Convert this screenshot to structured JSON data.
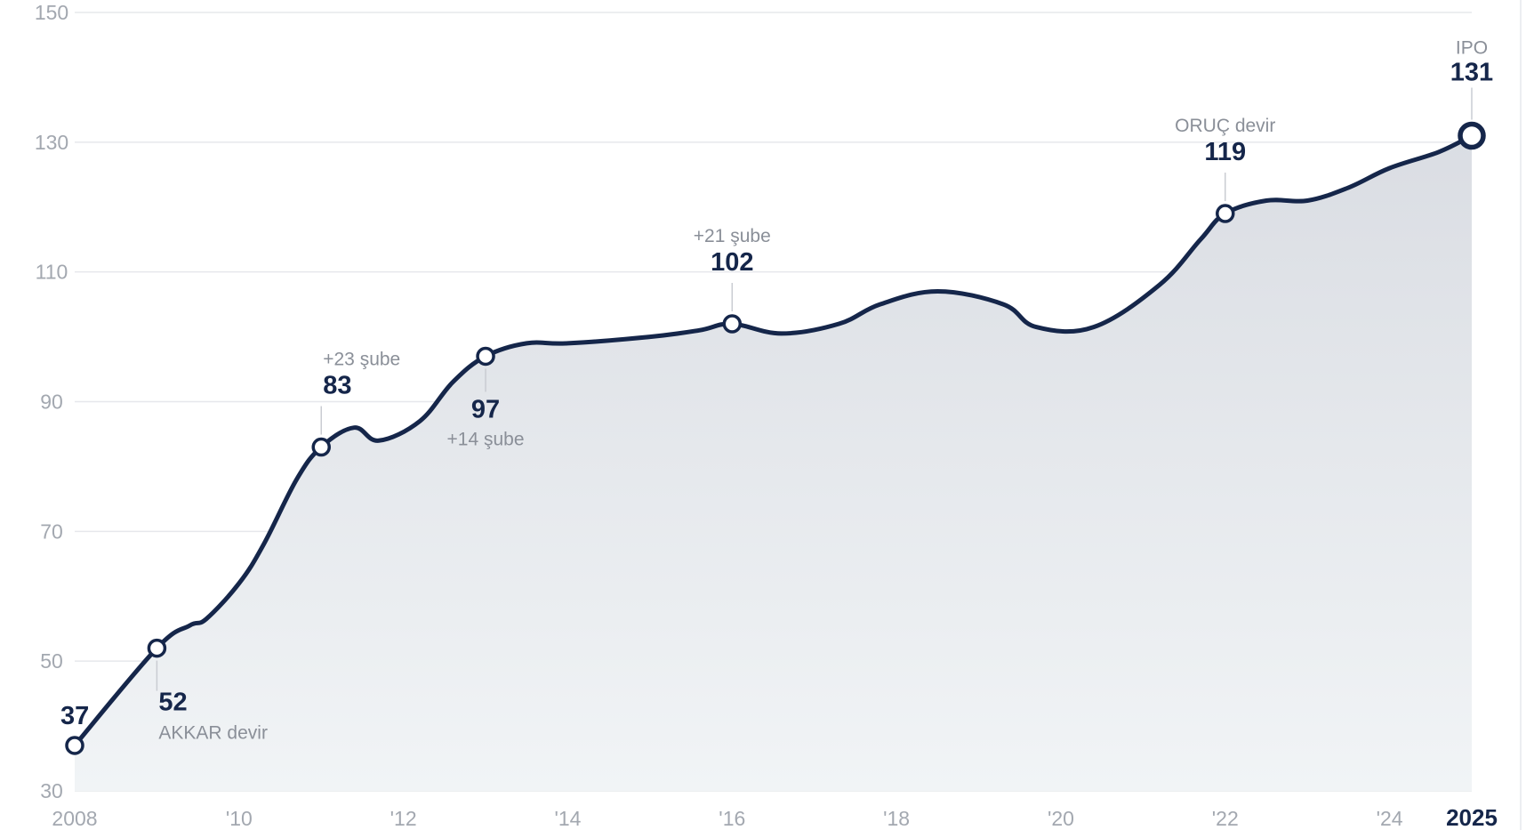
{
  "chart_data": {
    "type": "area",
    "title": "",
    "xlabel": "",
    "ylabel": "",
    "xlim": [
      2008,
      2025
    ],
    "ylim": [
      30,
      150
    ],
    "y_ticks": [
      30,
      50,
      70,
      90,
      110,
      130,
      150
    ],
    "y_tick_labels": [
      "30",
      "50",
      "70",
      "90",
      "110",
      "130",
      "150"
    ],
    "x_ticks": [
      2008,
      2010,
      2012,
      2014,
      2016,
      2018,
      2020,
      2022,
      2024,
      2025
    ],
    "x_tick_labels": [
      "2008",
      "'10",
      "'12",
      "'14",
      "'16",
      "'18",
      "'20",
      "'22",
      "'24",
      "2025"
    ],
    "grid": true,
    "legend": "none",
    "series": [
      {
        "x": [
          2008,
          2009,
          2009.4,
          2009.6,
          2010,
          2010.3,
          2010.7,
          2011,
          2011.4,
          2011.7,
          2012.2,
          2012.6,
          2013,
          2013.5,
          2014,
          2015,
          2015.6,
          2016,
          2016.6,
          2017.3,
          2017.8,
          2018.5,
          2019.3,
          2019.7,
          2020.4,
          2021.2,
          2021.7,
          2022,
          2022.5,
          2023,
          2023.5,
          2024,
          2024.6,
          2025
        ],
        "y": [
          37,
          52,
          55.5,
          56.5,
          62,
          68,
          78,
          83,
          86,
          84,
          87,
          93,
          97,
          99,
          99,
          100,
          101,
          102,
          100.5,
          102,
          105,
          107,
          105,
          101.5,
          101.5,
          108,
          115,
          119,
          121,
          121,
          123,
          126,
          128.5,
          131
        ]
      }
    ],
    "annotations": [
      {
        "x": 2008,
        "value": "37",
        "note": "",
        "marker": true
      },
      {
        "x": 2009,
        "value": "52",
        "note": "AKKAR devir",
        "marker": true
      },
      {
        "x": 2011,
        "value": "83",
        "note": "+23 şube",
        "marker": true
      },
      {
        "x": 2013,
        "value": "97",
        "note": "+14 şube",
        "marker": true
      },
      {
        "x": 2016,
        "value": "102",
        "note": "+21 şube",
        "marker": true
      },
      {
        "x": 2022,
        "value": "119",
        "note": "ORUÇ devir",
        "marker": true
      },
      {
        "x": 2025,
        "value": "131",
        "note": "IPO",
        "marker": true
      }
    ],
    "colors": {
      "line": "#15264a",
      "area_top": "#dadde3",
      "area_bottom": "#f1f4f6",
      "grid": "#e6e8ec",
      "tick_text": "#a3a8b0",
      "note_text": "#8a8f98",
      "value_text": "#15264a"
    }
  }
}
